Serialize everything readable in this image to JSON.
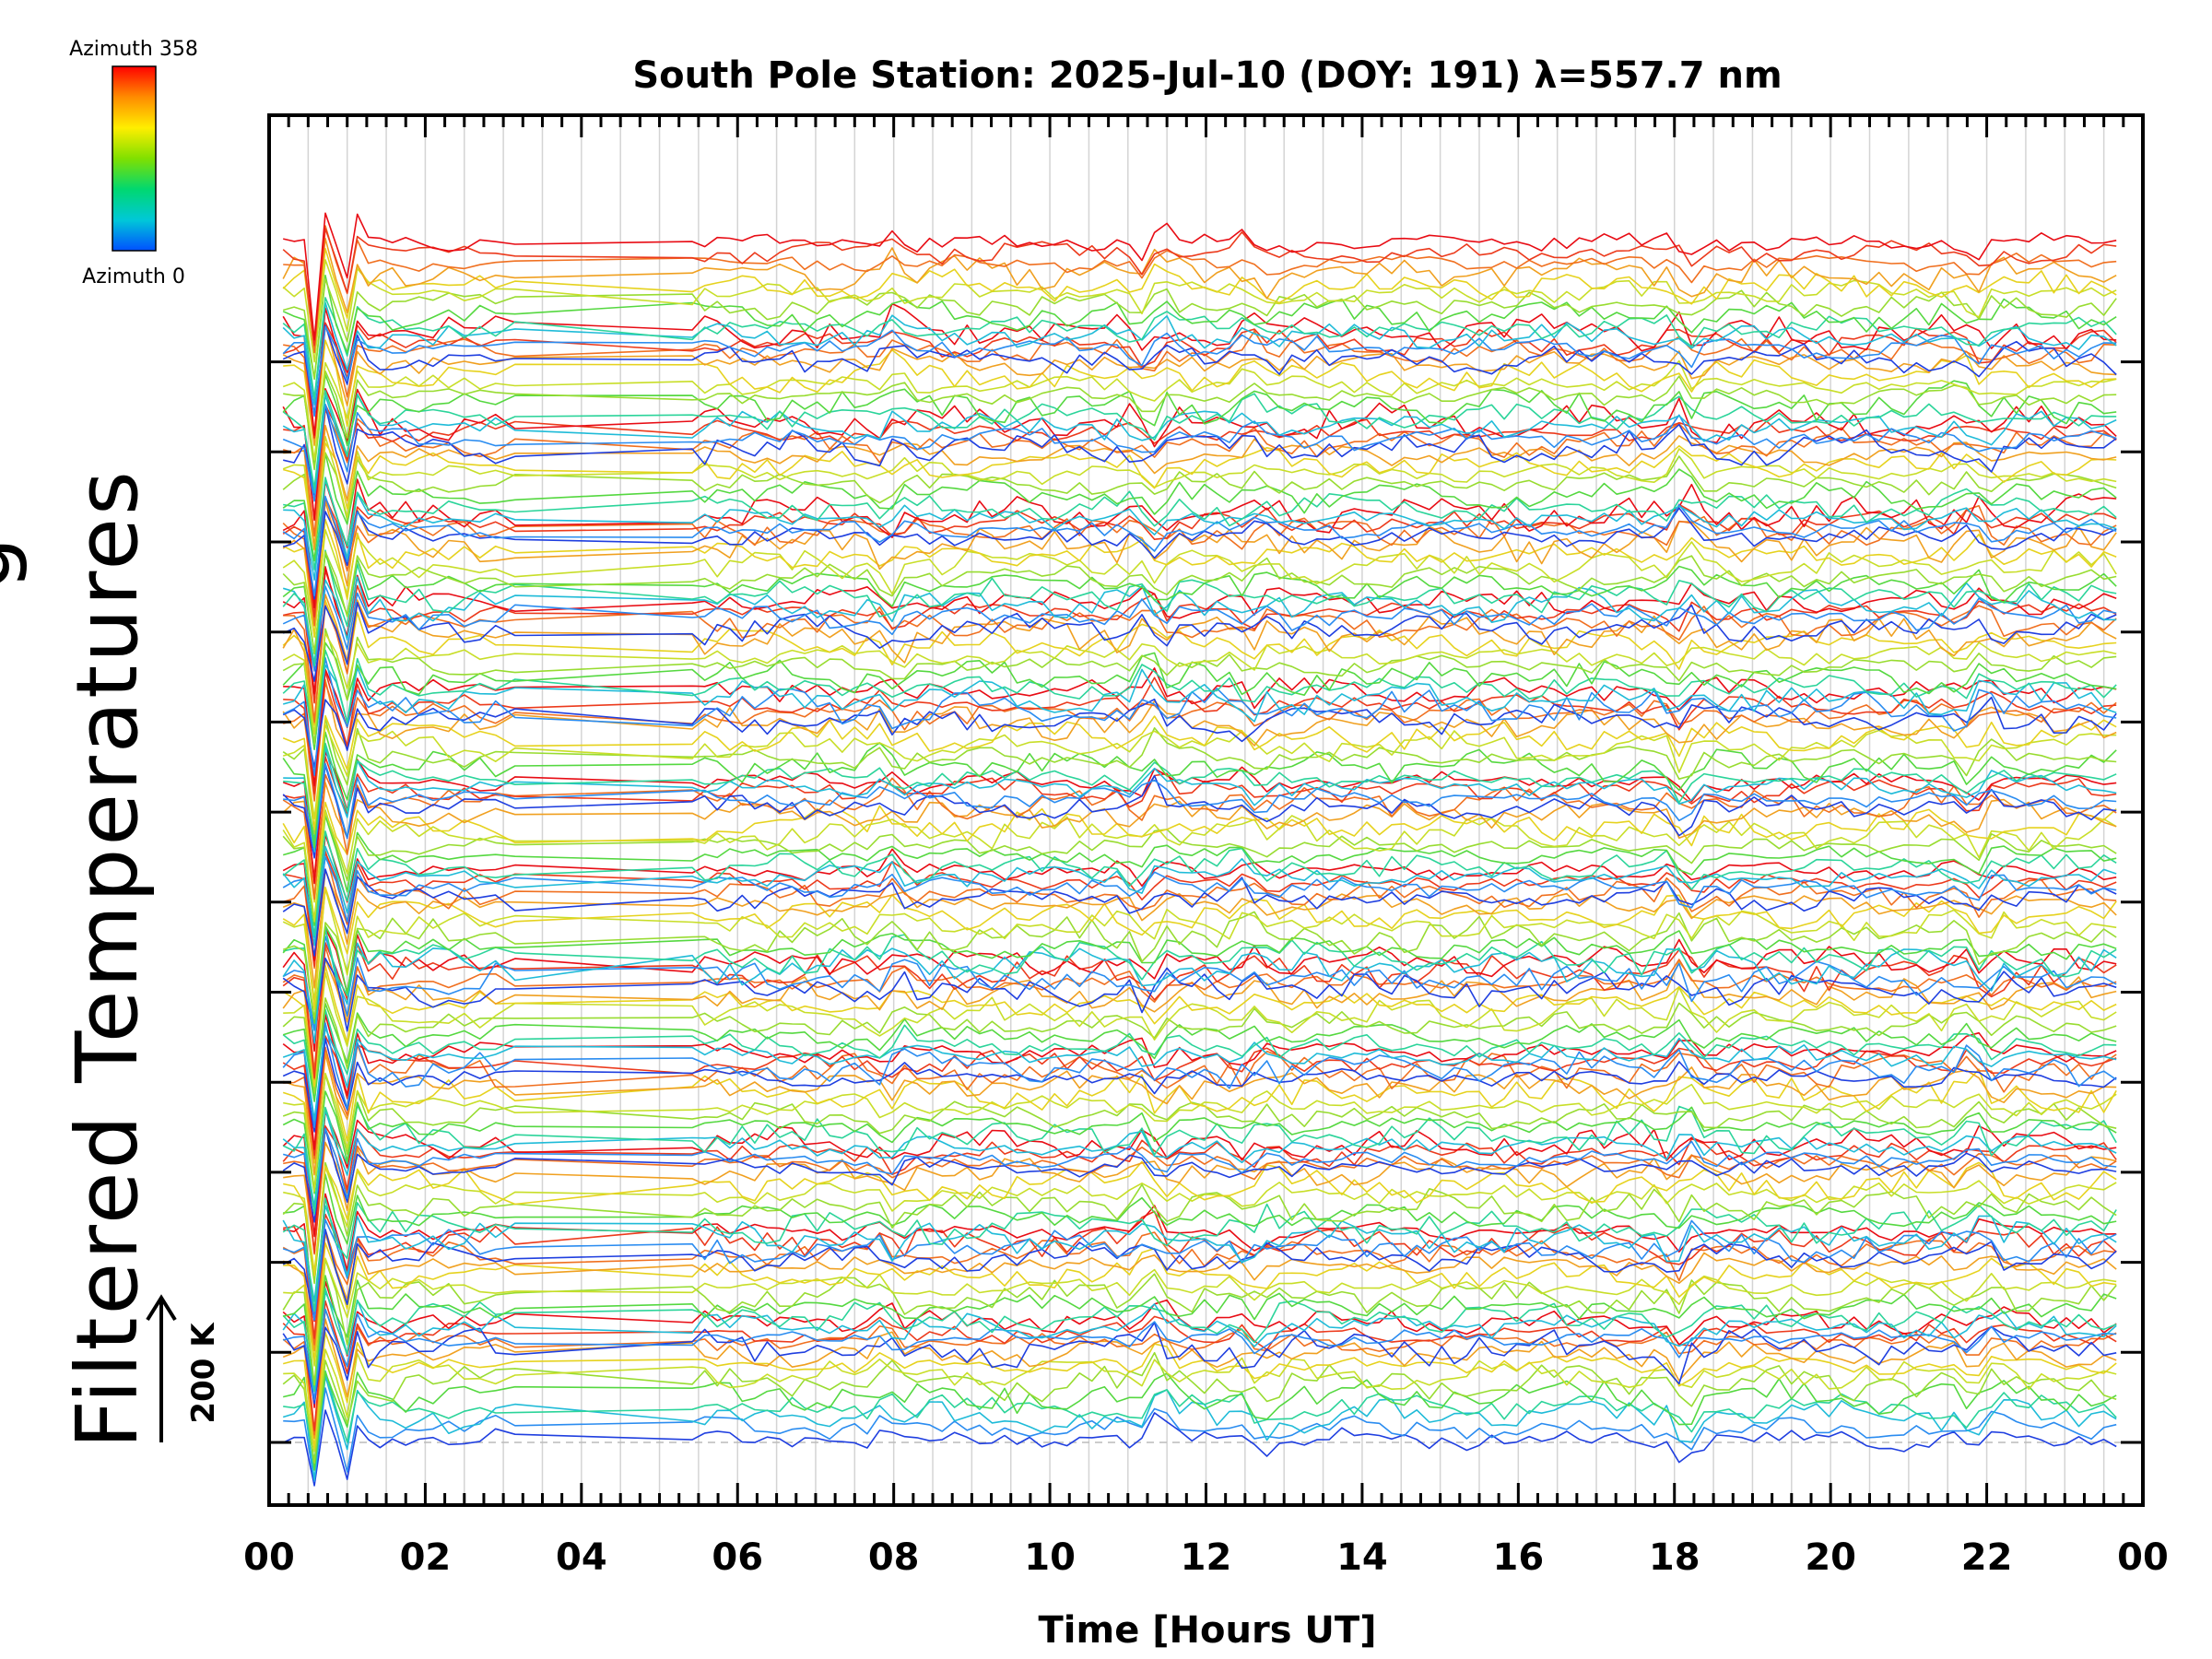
{
  "chart_data": {
    "type": "line",
    "title": "South Pole Station: 2025-Jul-10 (DOY: 191) λ=557.7 nm",
    "xlabel": "Time [Hours UT]",
    "ylabel": "Filtered Temperatures",
    "ylabel_cut": "g",
    "xlim": [
      0,
      24
    ],
    "xtick_labels": [
      "00",
      "02",
      "04",
      "06",
      "08",
      "10",
      "12",
      "14",
      "16",
      "18",
      "20",
      "22",
      "00"
    ],
    "colorbar": {
      "top_label": "Azimuth 358",
      "bottom_label": "Azimuth 0",
      "colors": [
        "#ff0000",
        "#ff8c00",
        "#ffee00",
        "#80e000",
        "#00d870",
        "#00c8d8",
        "#0050ff"
      ]
    },
    "scale_bar": {
      "label": "200 K"
    },
    "band_count": 13,
    "traces_per_band": 12,
    "grid": true,
    "series_colors": [
      "#1f3fe0",
      "#2a8cf0",
      "#1fbbd8",
      "#2bd49a",
      "#55d840",
      "#98dc30",
      "#c8de28",
      "#e6d21e",
      "#f0a020",
      "#f07020",
      "#ec3a1c",
      "#e80c14"
    ]
  }
}
